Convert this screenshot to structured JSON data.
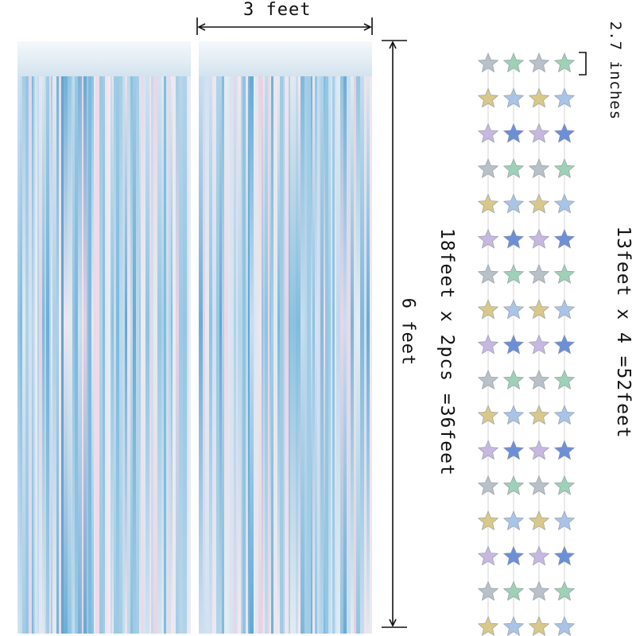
{
  "measurements": {
    "width_label": "3 feet",
    "height_label": "6 feet",
    "curtain_length_label": "18feet x 2pcs =36feet",
    "star_size_label": "2.7 inches",
    "garland_length_label": "13feet x 4 =52feet"
  },
  "colors": {
    "curtain_blue": "#7ab8dc",
    "curtain_pink": "#e8cde0",
    "curtain_silver": "#dfe8ee",
    "star_silver": "#b9c0c7",
    "star_blue": "#6d8fd8",
    "star_gold": "#d8c98a",
    "star_green": "#9fd0b8"
  },
  "garland": {
    "strings": 4,
    "stars_per_string": 17
  }
}
